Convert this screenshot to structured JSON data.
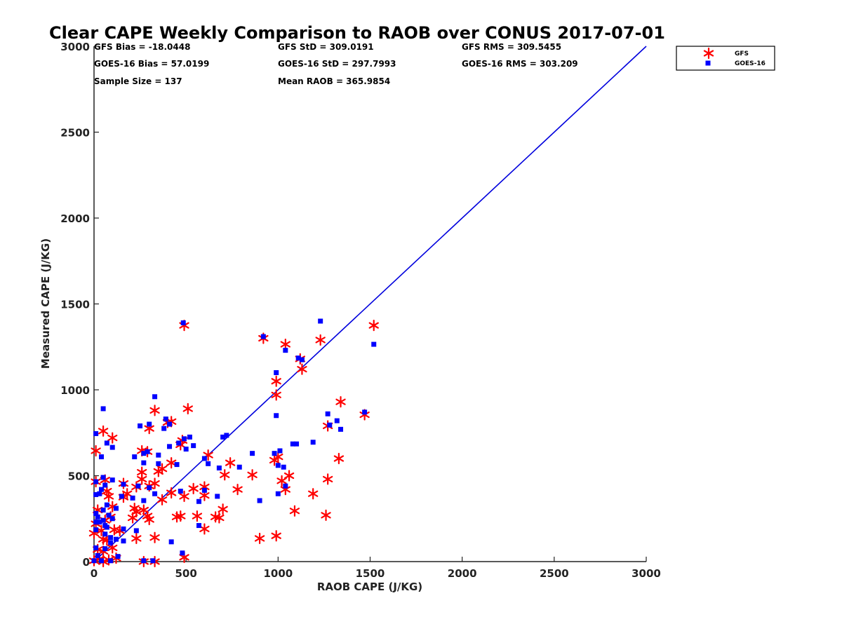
{
  "chart_data": {
    "type": "scatter",
    "title": "Clear CAPE Weekly Comparison to RAOB over CONUS 2017-07-01",
    "xlabel": "RAOB CAPE (J/KG)",
    "ylabel": "Measured CAPE (J/KG)",
    "xlim": [
      0,
      3000
    ],
    "ylim": [
      0,
      3000
    ],
    "xticks": [
      "0",
      "500",
      "1000",
      "1500",
      "2000",
      "2500",
      "3000"
    ],
    "yticks": [
      "0",
      "500",
      "1000",
      "1500",
      "2000",
      "2500",
      "3000"
    ],
    "grid": false,
    "legend_position": "top-right",
    "stats": {
      "gfs_bias": "GFS Bias = -18.0448",
      "gfs_std": "GFS StD = 309.0191",
      "gfs_rms": "GFS RMS = 309.5455",
      "goes_bias": "GOES-16 Bias = 57.0199",
      "goes_std": "GOES-16 StD = 297.7993",
      "goes_rms": "GOES-16 RMS = 303.209",
      "sample_size": "Sample Size = 137",
      "mean_raob": "Mean RAOB = 365.9854"
    },
    "reference_line": {
      "x": [
        0,
        3000
      ],
      "y": [
        0,
        3000
      ],
      "color": "#0000dd"
    },
    "series": [
      {
        "name": "GFS",
        "marker": "asterisk",
        "color": "#ff0000",
        "points": [
          [
            490,
            1375
          ],
          [
            1520,
            1375
          ],
          [
            920,
            1300
          ],
          [
            1040,
            1265
          ],
          [
            1230,
            1290
          ],
          [
            1120,
            1180
          ],
          [
            1130,
            1120
          ],
          [
            990,
            1050
          ],
          [
            990,
            970
          ],
          [
            1340,
            930
          ],
          [
            330,
            880
          ],
          [
            510,
            890
          ],
          [
            1470,
            855
          ],
          [
            1270,
            790
          ],
          [
            50,
            760
          ],
          [
            300,
            775
          ],
          [
            400,
            810
          ],
          [
            420,
            815
          ],
          [
            100,
            720
          ],
          [
            480,
            705
          ],
          [
            470,
            680
          ],
          [
            10,
            645
          ],
          [
            260,
            645
          ],
          [
            290,
            640
          ],
          [
            620,
            620
          ],
          [
            1000,
            610
          ],
          [
            1330,
            600
          ],
          [
            980,
            590
          ],
          [
            420,
            575
          ],
          [
            740,
            575
          ],
          [
            350,
            525
          ],
          [
            260,
            520
          ],
          [
            370,
            540
          ],
          [
            860,
            505
          ],
          [
            1060,
            500
          ],
          [
            710,
            505
          ],
          [
            1270,
            480
          ],
          [
            1020,
            470
          ],
          [
            60,
            475
          ],
          [
            10,
            465
          ],
          [
            160,
            455
          ],
          [
            260,
            480
          ],
          [
            330,
            455
          ],
          [
            230,
            435
          ],
          [
            300,
            440
          ],
          [
            540,
            425
          ],
          [
            600,
            435
          ],
          [
            780,
            420
          ],
          [
            1040,
            420
          ],
          [
            1190,
            395
          ],
          [
            70,
            410
          ],
          [
            180,
            395
          ],
          [
            80,
            380
          ],
          [
            160,
            375
          ],
          [
            420,
            400
          ],
          [
            490,
            380
          ],
          [
            600,
            385
          ],
          [
            370,
            360
          ],
          [
            220,
            310
          ],
          [
            270,
            300
          ],
          [
            100,
            320
          ],
          [
            700,
            305
          ],
          [
            1090,
            295
          ],
          [
            1260,
            270
          ],
          [
            230,
            290
          ],
          [
            290,
            265
          ],
          [
            300,
            245
          ],
          [
            450,
            260
          ],
          [
            560,
            265
          ],
          [
            470,
            265
          ],
          [
            680,
            255
          ],
          [
            660,
            260
          ],
          [
            210,
            255
          ],
          [
            60,
            240
          ],
          [
            110,
            185
          ],
          [
            140,
            180
          ],
          [
            600,
            190
          ],
          [
            0,
            165
          ],
          [
            50,
            130
          ],
          [
            230,
            135
          ],
          [
            330,
            140
          ],
          [
            900,
            135
          ],
          [
            990,
            150
          ],
          [
            70,
            125
          ],
          [
            100,
            80
          ],
          [
            20,
            70
          ],
          [
            50,
            60
          ],
          [
            120,
            20
          ],
          [
            30,
            15
          ],
          [
            490,
            25
          ],
          [
            0,
            5
          ],
          [
            50,
            0
          ],
          [
            80,
            10
          ],
          [
            270,
            0
          ],
          [
            330,
            0
          ],
          [
            20,
            300
          ],
          [
            10,
            220
          ],
          [
            40,
            180
          ],
          [
            90,
            260
          ]
        ]
      },
      {
        "name": "GOES-16",
        "marker": "square",
        "color": "#0000ff",
        "points": [
          [
            485,
            1390
          ],
          [
            1230,
            1400
          ],
          [
            920,
            1310
          ],
          [
            1040,
            1230
          ],
          [
            1130,
            1175
          ],
          [
            1110,
            1185
          ],
          [
            1520,
            1265
          ],
          [
            990,
            1100
          ],
          [
            990,
            850
          ],
          [
            330,
            960
          ],
          [
            50,
            890
          ],
          [
            1270,
            860
          ],
          [
            1470,
            870
          ],
          [
            1320,
            820
          ],
          [
            1340,
            770
          ],
          [
            250,
            790
          ],
          [
            300,
            800
          ],
          [
            390,
            830
          ],
          [
            410,
            800
          ],
          [
            380,
            775
          ],
          [
            10,
            745
          ],
          [
            720,
            735
          ],
          [
            700,
            725
          ],
          [
            520,
            725
          ],
          [
            490,
            715
          ],
          [
            460,
            690
          ],
          [
            70,
            690
          ],
          [
            1080,
            685
          ],
          [
            1100,
            685
          ],
          [
            1190,
            695
          ],
          [
            1280,
            795
          ],
          [
            100,
            665
          ],
          [
            410,
            670
          ],
          [
            540,
            675
          ],
          [
            500,
            655
          ],
          [
            290,
            640
          ],
          [
            270,
            630
          ],
          [
            1010,
            645
          ],
          [
            980,
            630
          ],
          [
            860,
            630
          ],
          [
            350,
            620
          ],
          [
            220,
            610
          ],
          [
            600,
            600
          ],
          [
            620,
            570
          ],
          [
            680,
            545
          ],
          [
            350,
            570
          ],
          [
            450,
            565
          ],
          [
            1000,
            560
          ],
          [
            1030,
            550
          ],
          [
            790,
            550
          ],
          [
            270,
            575
          ],
          [
            40,
            610
          ],
          [
            50,
            490
          ],
          [
            100,
            475
          ],
          [
            10,
            465
          ],
          [
            160,
            450
          ],
          [
            240,
            440
          ],
          [
            300,
            430
          ],
          [
            60,
            445
          ],
          [
            40,
            420
          ],
          [
            1040,
            440
          ],
          [
            470,
            410
          ],
          [
            600,
            415
          ],
          [
            10,
            390
          ],
          [
            30,
            395
          ],
          [
            150,
            380
          ],
          [
            210,
            370
          ],
          [
            330,
            395
          ],
          [
            670,
            380
          ],
          [
            1000,
            395
          ],
          [
            570,
            350
          ],
          [
            900,
            355
          ],
          [
            270,
            355
          ],
          [
            70,
            330
          ],
          [
            120,
            310
          ],
          [
            50,
            300
          ],
          [
            10,
            280
          ],
          [
            80,
            270
          ],
          [
            50,
            240
          ],
          [
            100,
            250
          ],
          [
            10,
            230
          ],
          [
            60,
            210
          ],
          [
            160,
            190
          ],
          [
            230,
            180
          ],
          [
            570,
            210
          ],
          [
            10,
            185
          ],
          [
            60,
            160
          ],
          [
            90,
            140
          ],
          [
            120,
            130
          ],
          [
            160,
            120
          ],
          [
            90,
            110
          ],
          [
            420,
            115
          ],
          [
            60,
            75
          ],
          [
            10,
            80
          ],
          [
            20,
            35
          ],
          [
            130,
            30
          ],
          [
            480,
            50
          ],
          [
            0,
            5
          ],
          [
            40,
            5
          ],
          [
            90,
            5
          ],
          [
            270,
            5
          ],
          [
            320,
            5
          ],
          [
            30,
            230
          ],
          [
            20,
            260
          ],
          [
            70,
            200
          ]
        ]
      }
    ]
  }
}
